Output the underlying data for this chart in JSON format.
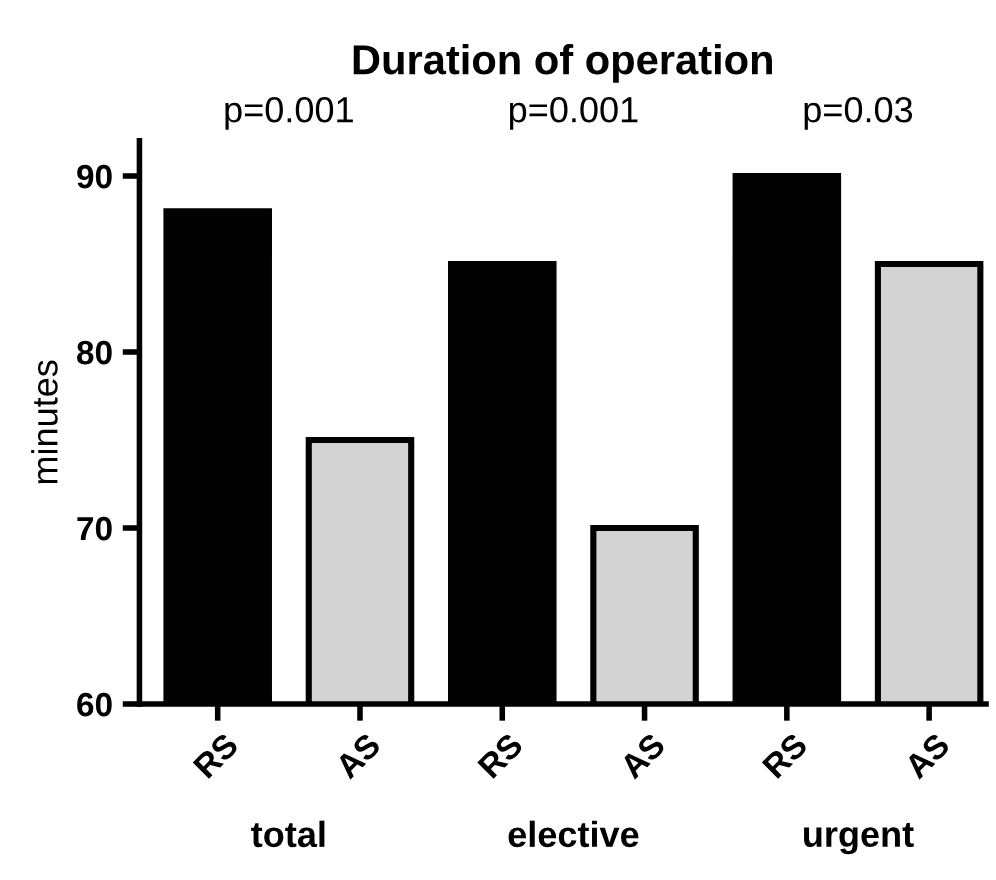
{
  "chart_data": {
    "type": "bar",
    "title": "Duration of operation",
    "ylabel": "minutes",
    "categories": [
      "RS",
      "AS",
      "RS",
      "AS",
      "RS",
      "AS"
    ],
    "values": [
      88,
      75,
      85,
      70,
      90,
      85
    ],
    "colors": [
      "#000000",
      "#d3d3d3",
      "#000000",
      "#d3d3d3",
      "#000000",
      "#d3d3d3"
    ],
    "ylim": [
      60,
      92
    ],
    "yticks": [
      60,
      70,
      80,
      90
    ],
    "grid": false,
    "legend": false,
    "annotations": [
      "p=0.001",
      "p=0.001",
      "p=0.03",
      "total",
      "elective",
      "urgent"
    ]
  }
}
